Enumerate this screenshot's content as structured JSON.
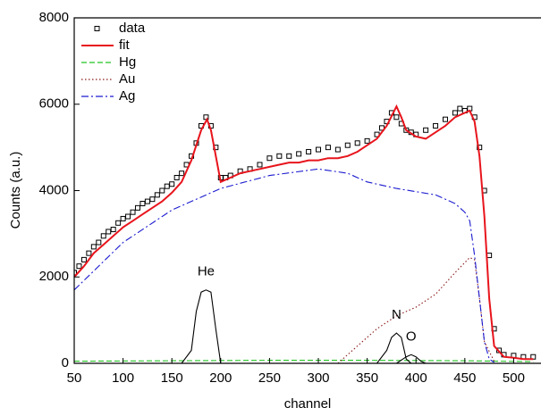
{
  "chart_data": {
    "type": "line",
    "xlabel": "channel",
    "ylabel": "Counts (a.u.)",
    "xlim": [
      50,
      528
    ],
    "ylim": [
      0,
      8000
    ],
    "xticks": [
      50,
      100,
      150,
      200,
      250,
      300,
      350,
      400,
      450,
      500
    ],
    "yticks": [
      0,
      2000,
      4000,
      6000,
      8000
    ],
    "grid": false,
    "legend": "upper left",
    "series": [
      {
        "name": "data",
        "color": "#000000",
        "style": "markers",
        "in_legend": true,
        "x": [
          50,
          55,
          60,
          65,
          70,
          75,
          80,
          85,
          90,
          95,
          100,
          105,
          110,
          115,
          120,
          125,
          130,
          135,
          140,
          145,
          150,
          155,
          160,
          165,
          170,
          175,
          180,
          185,
          190,
          195,
          200,
          205,
          210,
          220,
          230,
          240,
          250,
          260,
          270,
          280,
          290,
          300,
          310,
          320,
          330,
          340,
          350,
          360,
          365,
          370,
          375,
          380,
          385,
          390,
          395,
          400,
          410,
          420,
          430,
          440,
          445,
          450,
          455,
          460,
          465,
          470,
          475,
          480,
          485,
          490,
          500,
          510,
          520
        ],
        "values": [
          2100,
          2250,
          2400,
          2550,
          2700,
          2800,
          2950,
          3050,
          3100,
          3250,
          3350,
          3400,
          3500,
          3600,
          3700,
          3750,
          3800,
          3900,
          4000,
          4100,
          4150,
          4300,
          4400,
          4600,
          4800,
          5100,
          5500,
          5700,
          5500,
          5000,
          4300,
          4300,
          4350,
          4450,
          4500,
          4600,
          4750,
          4800,
          4800,
          4850,
          4900,
          4950,
          5000,
          4950,
          5050,
          5100,
          5150,
          5300,
          5450,
          5600,
          5800,
          5700,
          5550,
          5400,
          5350,
          5300,
          5400,
          5500,
          5650,
          5800,
          5900,
          5850,
          5900,
          5700,
          5000,
          4000,
          2500,
          800,
          300,
          200,
          180,
          150,
          150
        ]
      },
      {
        "name": "fit",
        "color": "#e8141c",
        "style": "solid",
        "in_legend": true,
        "x": [
          50,
          60,
          70,
          80,
          90,
          100,
          110,
          120,
          130,
          140,
          150,
          160,
          170,
          180,
          186,
          190,
          200,
          210,
          220,
          230,
          240,
          250,
          260,
          270,
          280,
          290,
          300,
          310,
          320,
          330,
          340,
          350,
          360,
          370,
          380,
          385,
          390,
          400,
          410,
          420,
          430,
          440,
          450,
          455,
          460,
          465,
          470,
          475,
          480,
          490,
          500,
          510,
          520
        ],
        "values": [
          2000,
          2250,
          2550,
          2750,
          2950,
          3150,
          3300,
          3450,
          3600,
          3750,
          3950,
          4200,
          4700,
          5400,
          5650,
          5400,
          4200,
          4300,
          4400,
          4450,
          4500,
          4550,
          4600,
          4650,
          4650,
          4700,
          4700,
          4750,
          4750,
          4800,
          4900,
          5050,
          5200,
          5500,
          5950,
          5700,
          5400,
          5250,
          5200,
          5350,
          5500,
          5700,
          5800,
          5850,
          5600,
          4800,
          3400,
          1500,
          400,
          150,
          130,
          100,
          100
        ]
      },
      {
        "name": "Hg",
        "color": "#22c422",
        "style": "dashed",
        "in_legend": true,
        "x": [
          50,
          150,
          250,
          350,
          450,
          520
        ],
        "values": [
          50,
          60,
          70,
          70,
          60,
          40
        ]
      },
      {
        "name": "Au",
        "color": "#8b1a1a",
        "style": "dotted",
        "in_legend": true,
        "x": [
          320,
          340,
          360,
          380,
          400,
          420,
          440,
          455,
          460,
          465,
          470,
          480
        ],
        "values": [
          0,
          400,
          800,
          1100,
          1300,
          1600,
          2100,
          2450,
          2400,
          1500,
          500,
          50
        ]
      },
      {
        "name": "Ag",
        "color": "#1a1ad0",
        "style": "dashdot",
        "in_legend": true,
        "x": [
          50,
          100,
          150,
          200,
          250,
          300,
          330,
          350,
          380,
          420,
          440,
          450,
          455,
          460,
          465,
          470,
          475,
          480
        ],
        "values": [
          1700,
          2800,
          3550,
          4050,
          4350,
          4500,
          4400,
          4200,
          4050,
          3900,
          3700,
          3500,
          3300,
          2500,
          1500,
          500,
          100,
          20
        ]
      },
      {
        "name": "He",
        "color": "#000000",
        "style": "solid",
        "in_legend": false,
        "x": [
          160,
          170,
          175,
          180,
          185,
          190,
          195,
          200
        ],
        "values": [
          0,
          300,
          1200,
          1650,
          1700,
          1650,
          800,
          0
        ]
      },
      {
        "name": "N",
        "color": "#000000",
        "style": "solid",
        "in_legend": false,
        "x": [
          360,
          370,
          375,
          380,
          385,
          390,
          395
        ],
        "values": [
          0,
          300,
          600,
          700,
          600,
          100,
          0
        ]
      },
      {
        "name": "O",
        "color": "#000000",
        "style": "solid",
        "in_legend": false,
        "x": [
          380,
          390,
          395,
          400,
          405,
          410
        ],
        "values": [
          0,
          150,
          200,
          150,
          50,
          0
        ]
      }
    ]
  }
}
